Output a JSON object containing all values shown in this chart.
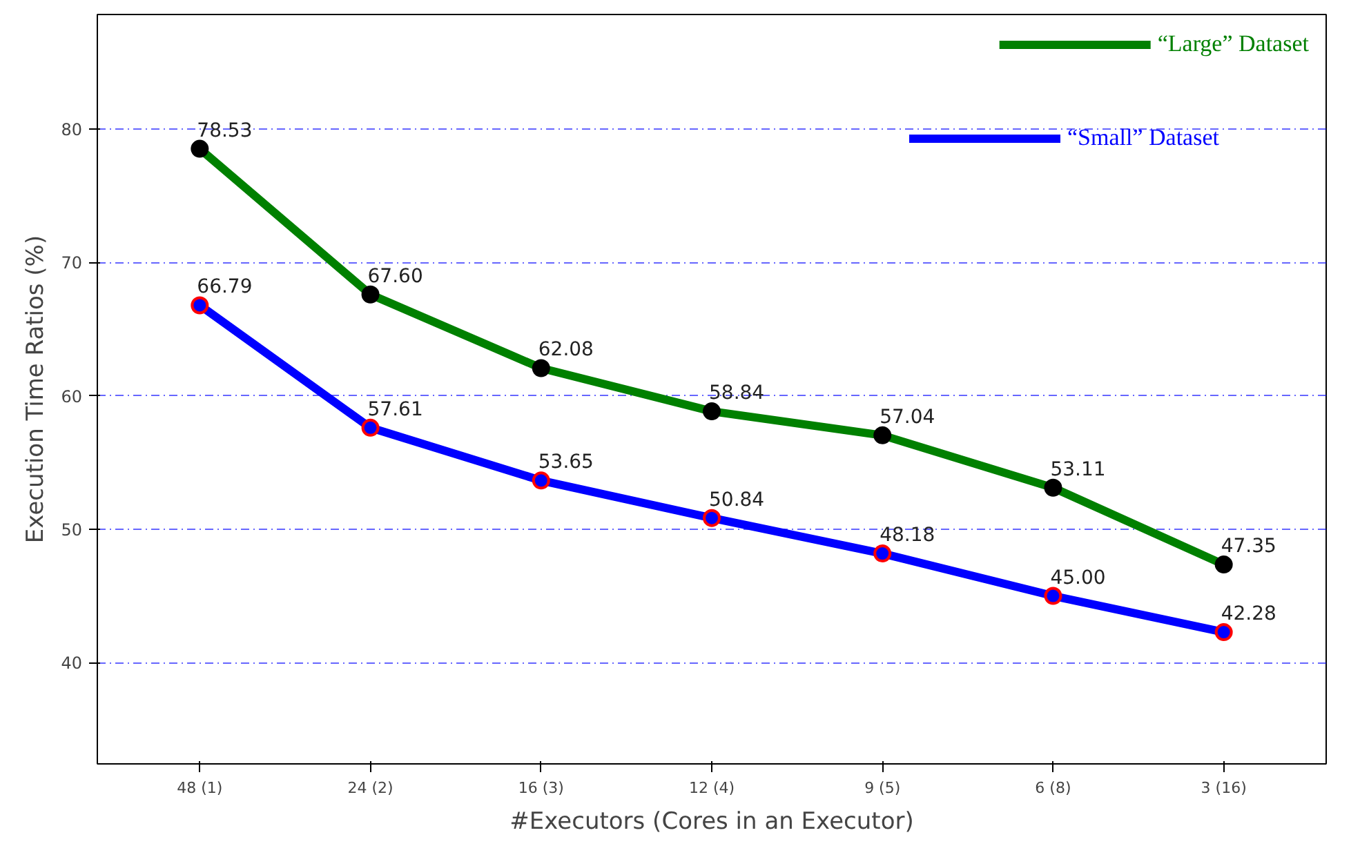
{
  "chart_data": {
    "type": "line",
    "xlabel": "#Executors (Cores in an Executor)",
    "ylabel": "Execution Time Ratios (%)",
    "categories": [
      "48 (1)",
      "24 (2)",
      "16 (3)",
      "12 (4)",
      "9 (5)",
      "6 (8)",
      "3 (16)"
    ],
    "ylim": [
      32.4,
      88.6
    ],
    "yticks": [
      40,
      50,
      60,
      70,
      80
    ],
    "grid": "y",
    "legend": "top right",
    "marker": "circle",
    "line_style": "solid",
    "series": [
      {
        "name": "“Large” Dataset",
        "color": "#008000",
        "values": [
          78.53,
          67.6,
          62.08,
          58.84,
          57.04,
          53.11,
          47.35
        ],
        "value_labels": [
          "78.53",
          "67.60",
          "62.08",
          "58.84",
          "57.04",
          "53.11",
          "47.35"
        ]
      },
      {
        "name": "“Small” Dataset",
        "color": "#0000ff",
        "values": [
          66.79,
          57.61,
          53.65,
          50.84,
          48.18,
          45.0,
          42.28
        ],
        "value_labels": [
          "66.79",
          "57.61",
          "53.65",
          "50.84",
          "48.18",
          "45.00",
          "42.28"
        ]
      }
    ]
  }
}
